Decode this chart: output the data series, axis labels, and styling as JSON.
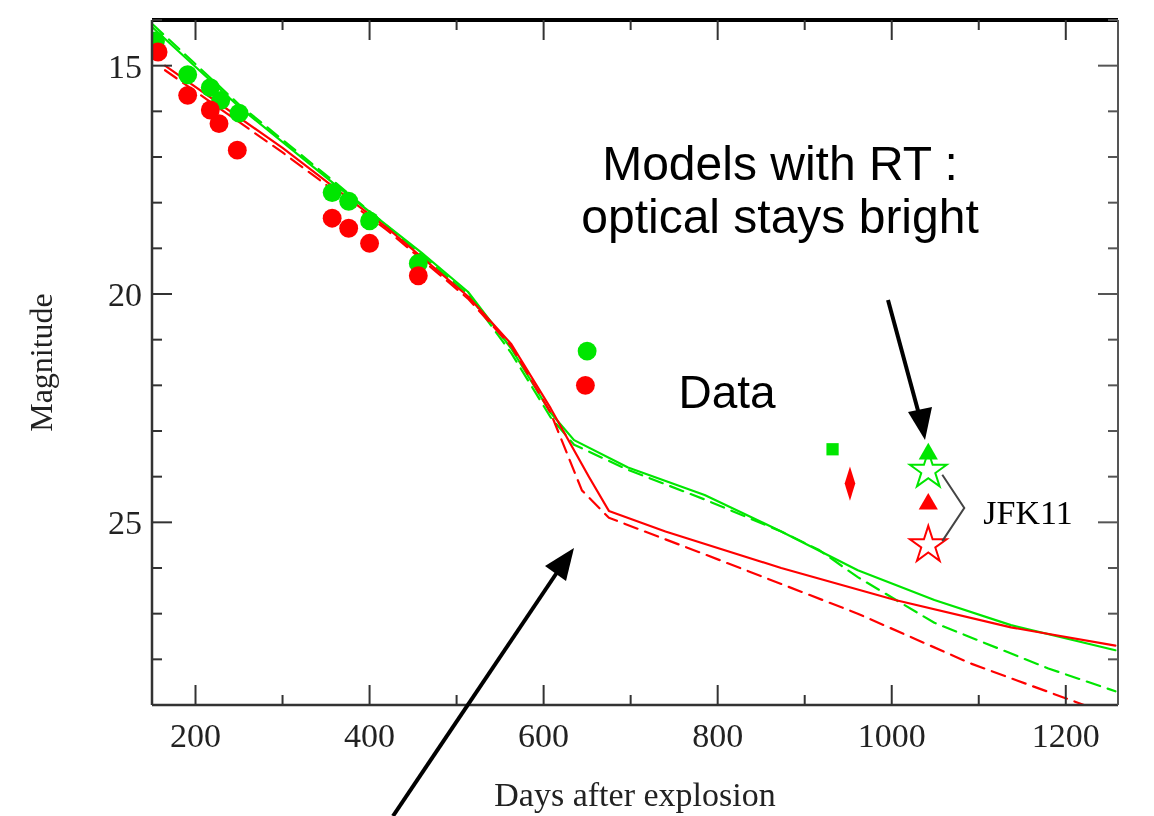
{
  "chart_data": {
    "type": "scatter",
    "xlabel": "Days after explosion",
    "ylabel": "Magnitude",
    "xlim": [
      150,
      1260
    ],
    "ylim": [
      29,
      14
    ],
    "xticks": [
      200,
      {
        "value": 300,
        "label": null
      },
      400,
      {
        "value": 500,
        "label": null
      },
      600,
      {
        "value": 700,
        "label": null
      },
      800,
      {
        "value": 900,
        "label": null
      },
      1000,
      {
        "value": 1100,
        "label": null
      },
      1200
    ],
    "yticks": [
      {
        "value": 14,
        "label": null
      },
      15,
      {
        "value": 16,
        "label": null
      },
      {
        "value": 17,
        "label": null
      },
      {
        "value": 18,
        "label": null
      },
      {
        "value": 19,
        "label": null
      },
      20,
      {
        "value": 21,
        "label": null
      },
      {
        "value": 22,
        "label": null
      },
      {
        "value": 23,
        "label": null
      },
      {
        "value": 24,
        "label": null
      },
      25,
      {
        "value": 26,
        "label": null
      },
      {
        "value": 27,
        "label": null
      },
      {
        "value": 28,
        "label": null
      }
    ],
    "grid": false,
    "series": [
      {
        "type": "scatter",
        "marker": "circle",
        "color": "#00e600",
        "x": [
          154,
          191,
          217,
          229,
          250,
          357,
          376,
          400,
          456,
          650
        ],
        "values": [
          14.46,
          15.2,
          15.48,
          15.76,
          16.04,
          17.78,
          17.97,
          18.4,
          19.33,
          21.25
        ]
      },
      {
        "type": "scatter",
        "marker": "circle",
        "color": "#ff0000",
        "x": [
          157,
          191,
          217,
          227,
          248,
          357,
          376,
          400,
          456,
          648
        ],
        "values": [
          14.7,
          15.65,
          15.97,
          16.27,
          16.85,
          18.34,
          18.56,
          18.89,
          19.6,
          22.0
        ]
      },
      {
        "type": "scatter",
        "marker": "square",
        "color": "#00e600",
        "x": [
          932
        ],
        "values": [
          23.4
        ]
      },
      {
        "type": "scatter",
        "marker": "diamond",
        "color": "#ff0000",
        "x": [
          952
        ],
        "values": [
          24.15
        ]
      },
      {
        "type": "scatter",
        "marker": "triangle",
        "color": "#00e600",
        "x": [
          1042
        ],
        "values": [
          23.5
        ]
      },
      {
        "type": "scatter",
        "marker": "star",
        "color": "#00e600",
        "x": [
          1042
        ],
        "values": [
          23.87
        ]
      },
      {
        "type": "scatter",
        "marker": "triangle",
        "color": "#ff0000",
        "x": [
          1042
        ],
        "values": [
          24.6
        ]
      },
      {
        "type": "scatter",
        "marker": "star",
        "color": "#ff0000",
        "x": [
          1042
        ],
        "values": [
          25.5
        ]
      },
      {
        "type": "line",
        "line_style": "solid",
        "color": "#00e600",
        "x": [
          151,
          250,
          360,
          460,
          513,
          563,
          608,
          635,
          697,
          785,
          873,
          961,
          1049,
          1137,
          1257
        ],
        "values": [
          14.17,
          15.9,
          17.6,
          19.1,
          19.95,
          21.2,
          22.6,
          23.2,
          23.8,
          24.4,
          25.2,
          26.05,
          26.7,
          27.25,
          27.8
        ]
      },
      {
        "type": "line",
        "line_style": "dashed",
        "color": "#00e600",
        "x": [
          151,
          250,
          360,
          460,
          513,
          563,
          608,
          635,
          697,
          785,
          873,
          916,
          961,
          1049,
          1180,
          1257
        ],
        "values": [
          14.1,
          15.85,
          17.55,
          19.15,
          20.0,
          21.3,
          22.7,
          23.3,
          23.85,
          24.5,
          25.2,
          25.6,
          26.2,
          27.2,
          28.2,
          28.7
        ]
      },
      {
        "type": "line",
        "line_style": "solid",
        "color": "#ff0000",
        "x": [
          165,
          300,
          420,
          513,
          563,
          608,
          652,
          675,
          740,
          873,
          1004,
          1137,
          1257
        ],
        "values": [
          15.0,
          16.8,
          18.55,
          20.05,
          21.1,
          22.5,
          24.0,
          24.75,
          25.2,
          26.0,
          26.7,
          27.3,
          27.7
        ]
      },
      {
        "type": "line",
        "line_style": "dashed",
        "color": "#ff0000",
        "x": [
          165,
          300,
          420,
          513,
          563,
          608,
          644,
          675,
          785,
          961,
          1092,
          1221
        ],
        "values": [
          15.1,
          16.9,
          18.6,
          20.1,
          21.15,
          22.6,
          24.3,
          24.9,
          25.7,
          27.0,
          28.1,
          29.0
        ]
      }
    ],
    "annotations": [
      "Models with RT :\noptical stays bright",
      "Data",
      "JFK11"
    ]
  }
}
